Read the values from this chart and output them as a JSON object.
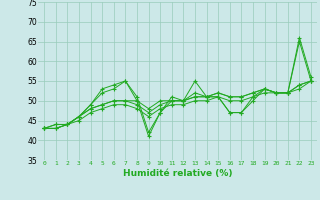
{
  "xlabel": "Humidité relative (%)",
  "bg_color": "#cce8e8",
  "grid_color": "#99ccbb",
  "line_color": "#22aa22",
  "xmin": -0.5,
  "xmax": 23.5,
  "ymin": 35,
  "ymax": 75,
  "yticks": [
    35,
    40,
    45,
    50,
    55,
    60,
    65,
    70,
    75
  ],
  "xticks": [
    0,
    1,
    2,
    3,
    4,
    5,
    6,
    7,
    8,
    9,
    10,
    11,
    12,
    13,
    14,
    15,
    16,
    17,
    18,
    19,
    20,
    21,
    22,
    23
  ],
  "series": [
    [
      43,
      44,
      44,
      46,
      49,
      53,
      54,
      55,
      50,
      41,
      47,
      51,
      50,
      55,
      51,
      51,
      47,
      47,
      51,
      53,
      52,
      52,
      66,
      56
    ],
    [
      43,
      44,
      44,
      46,
      49,
      52,
      53,
      55,
      51,
      42,
      47,
      50,
      50,
      52,
      51,
      51,
      47,
      47,
      50,
      53,
      52,
      52,
      65,
      55
    ],
    [
      43,
      43,
      44,
      46,
      48,
      49,
      50,
      50,
      50,
      48,
      50,
      50,
      50,
      51,
      51,
      52,
      51,
      51,
      52,
      53,
      52,
      52,
      54,
      55
    ],
    [
      43,
      43,
      44,
      46,
      48,
      49,
      50,
      50,
      49,
      47,
      49,
      50,
      50,
      51,
      51,
      52,
      51,
      51,
      52,
      53,
      52,
      52,
      54,
      55
    ],
    [
      43,
      43,
      44,
      45,
      47,
      48,
      49,
      49,
      48,
      46,
      48,
      49,
      49,
      50,
      50,
      51,
      50,
      50,
      51,
      52,
      52,
      52,
      53,
      55
    ]
  ]
}
